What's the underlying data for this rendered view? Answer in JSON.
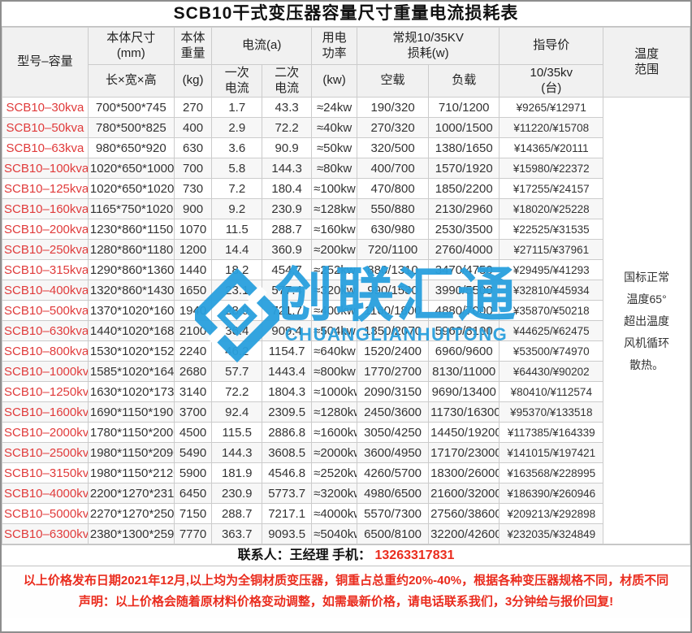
{
  "page": {
    "title": "SCB10干式变压器容量尺寸重量电流损耗表"
  },
  "colors": {
    "accent_red": "#e03b3b",
    "note_red": "#ea2c1e",
    "watermark_blue": "#29a0de",
    "border": "#cccccc",
    "header_bg": "#f1f1f1"
  },
  "table": {
    "headers": {
      "model": "型号–容量",
      "size_l1": "本体尺寸",
      "size_l2": "(mm)",
      "size_sub": "长×宽×高",
      "weight_l1": "本体",
      "weight_l2": "重量",
      "weight_sub": "(kg)",
      "current_group": "电流(a)",
      "current_primary_l1": "一次",
      "current_primary_l2": "电流",
      "current_secondary_l1": "二次",
      "current_secondary_l2": "电流",
      "power_l1": "用电",
      "power_l2": "功率",
      "power_sub": "(kw)",
      "loss_group_l1": "常规10/35KV",
      "loss_group_l2": "损耗(w)",
      "loss_noload": "空载",
      "loss_load": "负载",
      "price": "指导价",
      "price_sub_l1": "10/35kv",
      "price_sub_l2": "(台)",
      "temp_l1": "温度",
      "temp_l2": "范围"
    },
    "row_keys": [
      "model",
      "size",
      "weight",
      "i1",
      "i2",
      "power",
      "no_load",
      "load",
      "price"
    ],
    "temp_note_lines": [
      "国标正常",
      "温度65°",
      "超出温度",
      "风机循环",
      "散热。"
    ],
    "rows": [
      {
        "model": "SCB10–30kva",
        "size": "700*500*745",
        "weight": "270",
        "i1": "1.7",
        "i2": "43.3",
        "power": "≈24kw",
        "no_load": "190/320",
        "load": "710/1200",
        "price": "¥9265/¥12971"
      },
      {
        "model": "SCB10–50kva",
        "size": "780*500*825",
        "weight": "400",
        "i1": "2.9",
        "i2": "72.2",
        "power": "≈40kw",
        "no_load": "270/320",
        "load": "1000/1500",
        "price": "¥11220/¥15708"
      },
      {
        "model": "SCB10–63kva",
        "size": "980*650*920",
        "weight": "630",
        "i1": "3.6",
        "i2": "90.9",
        "power": "≈50kw",
        "no_load": "320/500",
        "load": "1380/1650",
        "price": "¥14365/¥20111"
      },
      {
        "model": "SCB10–100kva",
        "size": "1020*650*1000",
        "weight": "700",
        "i1": "5.8",
        "i2": "144.3",
        "power": "≈80kw",
        "no_load": "400/700",
        "load": "1570/1920",
        "price": "¥15980/¥22372"
      },
      {
        "model": "SCB10–125kva",
        "size": "1020*650*1020",
        "weight": "730",
        "i1": "7.2",
        "i2": "180.4",
        "power": "≈100kw",
        "no_load": "470/800",
        "load": "1850/2200",
        "price": "¥17255/¥24157"
      },
      {
        "model": "SCB10–160kva",
        "size": "1165*750*1020",
        "weight": "900",
        "i1": "9.2",
        "i2": "230.9",
        "power": "≈128kw",
        "no_load": "550/880",
        "load": "2130/2960",
        "price": "¥18020/¥25228"
      },
      {
        "model": "SCB10–200kva",
        "size": "1230*860*1150",
        "weight": "1070",
        "i1": "11.5",
        "i2": "288.7",
        "power": "≈160kw",
        "no_load": "630/980",
        "load": "2530/3500",
        "price": "¥22525/¥31535"
      },
      {
        "model": "SCB10–250kva",
        "size": "1280*860*1180",
        "weight": "1200",
        "i1": "14.4",
        "i2": "360.9",
        "power": "≈200kw",
        "no_load": "720/1100",
        "load": "2760/4000",
        "price": "¥27115/¥37961"
      },
      {
        "model": "SCB10–315kva",
        "size": "1290*860*1360",
        "weight": "1440",
        "i1": "18.2",
        "i2": "454.7",
        "power": "≈252kw",
        "no_load": "880/1310",
        "load": "3470/4750",
        "price": "¥29495/¥41293"
      },
      {
        "model": "SCB10–400kva",
        "size": "1320*860*1430",
        "weight": "1650",
        "i1": "23.1",
        "i2": "577.4",
        "power": "≈320kw",
        "no_load": "990/1530",
        "load": "3990/5500",
        "price": "¥32810/¥45934"
      },
      {
        "model": "SCB10–500kva",
        "size": "1370*1020*1600",
        "weight": "1940",
        "i1": "28.9",
        "i2": "721.7",
        "power": "≈400kw",
        "no_load": "1160/1800",
        "load": "4880/7000",
        "price": "¥35870/¥50218"
      },
      {
        "model": "SCB10–630kva",
        "size": "1440*1020*1680",
        "weight": "2100",
        "i1": "36.4",
        "i2": "909.4",
        "power": "≈504kw",
        "no_load": "1350/2070",
        "load": "5960/8100",
        "price": "¥44625/¥62475"
      },
      {
        "model": "SCB10–800kva",
        "size": "1530*1020*1520",
        "weight": "2240",
        "i1": "46.2",
        "i2": "1154.7",
        "power": "≈640kw",
        "no_load": "1520/2400",
        "load": "6960/9600",
        "price": "¥53500/¥74970"
      },
      {
        "model": "SCB10–1000kva",
        "size": "1585*1020*1640",
        "weight": "2680",
        "i1": "57.7",
        "i2": "1443.4",
        "power": "≈800kw",
        "no_load": "1770/2700",
        "load": "8130/11000",
        "price": "¥64430/¥90202"
      },
      {
        "model": "SCB10–1250kva",
        "size": "1630*1020*1730",
        "weight": "3140",
        "i1": "72.2",
        "i2": "1804.3",
        "power": "≈1000kw",
        "no_load": "2090/3150",
        "load": "9690/13400",
        "price": "¥80410/¥112574"
      },
      {
        "model": "SCB10–1600kva",
        "size": "1690*1150*1900",
        "weight": "3700",
        "i1": "92.4",
        "i2": "2309.5",
        "power": "≈1280kw",
        "no_load": "2450/3600",
        "load": "11730/16300",
        "price": "¥95370/¥133518"
      },
      {
        "model": "SCB10–2000kva",
        "size": "1780*1150*2000",
        "weight": "4500",
        "i1": "115.5",
        "i2": "2886.8",
        "power": "≈1600kw",
        "no_load": "3050/4250",
        "load": "14450/19200",
        "price": "¥117385/¥164339"
      },
      {
        "model": "SCB10–2500kva",
        "size": "1980*1150*2090",
        "weight": "5490",
        "i1": "144.3",
        "i2": "3608.5",
        "power": "≈2000kw",
        "no_load": "3600/4950",
        "load": "17170/23000",
        "price": "¥141015/¥197421"
      },
      {
        "model": "SCB10–3150kva",
        "size": "1980*1150*2120",
        "weight": "5900",
        "i1": "181.9",
        "i2": "4546.8",
        "power": "≈2520kw",
        "no_load": "4260/5700",
        "load": "18300/26000",
        "price": "¥163568/¥228995"
      },
      {
        "model": "SCB10–4000kva",
        "size": "2200*1270*2310",
        "weight": "6450",
        "i1": "230.9",
        "i2": "5773.7",
        "power": "≈3200kw",
        "no_load": "4980/6500",
        "load": "21600/32000",
        "price": "¥186390/¥260946"
      },
      {
        "model": "SCB10–5000kva",
        "size": "2270*1270*2500",
        "weight": "7150",
        "i1": "288.7",
        "i2": "7217.1",
        "power": "≈4000kw",
        "no_load": "5570/7300",
        "load": "27560/38600",
        "price": "¥209213/¥292898"
      },
      {
        "model": "SCB10–6300kva",
        "size": "2380*1300*2590",
        "weight": "7770",
        "i1": "363.7",
        "i2": "9093.5",
        "power": "≈5040kw",
        "no_load": "6500/8100",
        "load": "32200/42600",
        "price": "¥232035/¥324849"
      }
    ]
  },
  "watermark": {
    "cn": "创联汇通",
    "en": "CHUANGLIANHUITONG"
  },
  "contact": {
    "prefix": "联系人：王经理 手机：",
    "phone": "13263317831"
  },
  "notes": {
    "line1": "以上价格发布日期2021年12月,以上均为全铜材质变压器，铜重占总重约20%-40%，根据各种变压器规格不同，材质不同",
    "line2": "声明：以上价格会随着原材料价格变动调整，如需最新价格，请电话联系我们，3分钟给与报价回复!"
  }
}
